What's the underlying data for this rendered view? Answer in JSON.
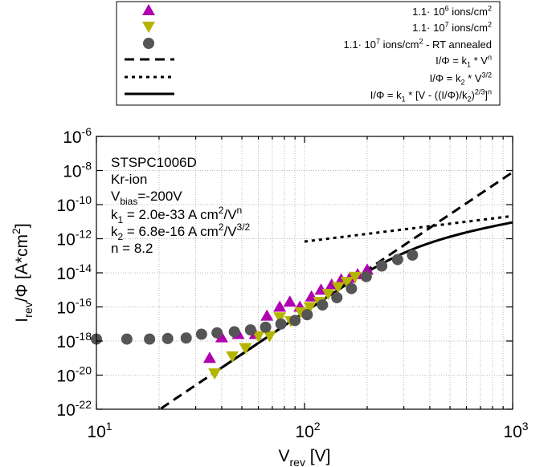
{
  "chart_data": {
    "type": "scatter",
    "x_scale": "log",
    "y_scale": "log",
    "xlim": [
      10,
      1000
    ],
    "ylim": [
      1e-22,
      1e-06
    ],
    "grid": true,
    "legend_placement": "above plot",
    "xlabel": {
      "base": "V",
      "sub": "rev",
      "rest": " [V]"
    },
    "ylabel": {
      "base": "I",
      "sub": "rev",
      "mid": "/Φ [A*cm",
      "sup": "2",
      "end": "]"
    },
    "x_ticks": [
      {
        "value": 10,
        "base": "10",
        "exp": "1"
      },
      {
        "value": 100,
        "base": "10",
        "exp": "2"
      },
      {
        "value": 1000,
        "base": "10",
        "exp": "3"
      }
    ],
    "y_ticks": [
      {
        "value": 1e-06,
        "base": "10",
        "exp": "-6"
      },
      {
        "value": 1e-08,
        "base": "10",
        "exp": "-8"
      },
      {
        "value": 1e-10,
        "base": "10",
        "exp": "-10"
      },
      {
        "value": 1e-12,
        "base": "10",
        "exp": "-12"
      },
      {
        "value": 1e-14,
        "base": "10",
        "exp": "-14"
      },
      {
        "value": 1e-16,
        "base": "10",
        "exp": "-16"
      },
      {
        "value": 1e-18,
        "base": "10",
        "exp": "-18"
      },
      {
        "value": 1e-20,
        "base": "10",
        "exp": "-20"
      },
      {
        "value": 1e-22,
        "base": "10",
        "exp": "-22"
      }
    ],
    "legend": [
      {
        "key": "up",
        "text": "1.1· 10",
        "sup": "6",
        "text2": " ions/cm",
        "sup2": "2"
      },
      {
        "key": "down",
        "text": "1.1· 10",
        "sup": "7",
        "text2": " ions/cm",
        "sup2": "2"
      },
      {
        "key": "dot",
        "text": "1.1· 10",
        "sup": "7",
        "text2": " ions/cm",
        "sup2": "2",
        "text3": " - RT annealed"
      },
      {
        "key": "dash",
        "text": "I/Φ = k",
        "sub": "1",
        "text2": " * V",
        "sup2": "n"
      },
      {
        "key": "dot-line",
        "text": "I/Φ = k",
        "sub": "2",
        "text2": " * V",
        "sup2": "3/2"
      },
      {
        "key": "solid",
        "text": "I/Φ = k",
        "sub": "1",
        "text2": " * [V - ((I/Φ)/k",
        "sub2": "2",
        "text3": ")",
        "sup3": "2/3",
        "text4": "]",
        "sup4": "n"
      }
    ],
    "annotation": {
      "device": "STSPC1006D",
      "ion": "Kr-ion",
      "vbias": {
        "base": "V",
        "sub": "bias",
        "rest": "=-200V"
      },
      "k1": {
        "pre": "k",
        "sub": "1",
        "mid": " = 2.0e-33 A cm",
        "sup": "2",
        "mid2": "/V",
        "sup2": "n"
      },
      "k2": {
        "pre": "k",
        "sub": "2",
        "mid": " = 6.8e-16 A cm",
        "sup": "2",
        "mid2": "/V",
        "sup2": "3/2"
      },
      "n": "n = 8.2"
    },
    "series": [
      {
        "marker": "triangle-up",
        "color": "#b000b0",
        "points": [
          [
            35,
            1e-19
          ],
          [
            40,
            1.6e-18
          ],
          [
            48,
            2.5e-18
          ],
          [
            58,
            2.5e-18
          ],
          [
            66,
            3e-17
          ],
          [
            76,
            1e-16
          ],
          [
            85,
            2e-16
          ],
          [
            95,
            1e-16
          ],
          [
            108,
            4e-16
          ],
          [
            120,
            1e-15
          ],
          [
            135,
            2e-15
          ],
          [
            150,
            4e-15
          ],
          [
            165,
            5e-15
          ],
          [
            180,
            8e-15
          ],
          [
            200,
            1.5e-14
          ]
        ]
      },
      {
        "marker": "triangle-down",
        "color": "#b5b500",
        "points": [
          [
            37,
            1.3e-20
          ],
          [
            45,
            1.3e-19
          ],
          [
            52,
            4e-19
          ],
          [
            60,
            2e-18
          ],
          [
            68,
            2e-18
          ],
          [
            76,
            2.5e-17
          ],
          [
            86,
            1.5e-17
          ],
          [
            96,
            5e-17
          ],
          [
            106,
            1e-16
          ],
          [
            118,
            2e-16
          ],
          [
            130,
            6e-16
          ],
          [
            145,
            1.5e-15
          ],
          [
            160,
            3e-15
          ],
          [
            175,
            6e-15
          ]
        ]
      },
      {
        "marker": "circle",
        "color": "#555555",
        "points": [
          [
            10,
            1.3e-18
          ],
          [
            14,
            1.3e-18
          ],
          [
            18,
            1.3e-18
          ],
          [
            22,
            1.4e-18
          ],
          [
            27,
            1.5e-18
          ],
          [
            32,
            2.5e-18
          ],
          [
            38,
            3e-18
          ],
          [
            46,
            3.5e-18
          ],
          [
            55,
            4.5e-18
          ],
          [
            65,
            6.5e-18
          ],
          [
            77,
            1e-17
          ],
          [
            90,
            1.6e-17
          ],
          [
            103,
            3.5e-17
          ],
          [
            122,
            1.3e-16
          ],
          [
            143,
            3.5e-16
          ],
          [
            168,
            1.2e-15
          ],
          [
            198,
            6e-15
          ],
          [
            235,
            2.5e-14
          ],
          [
            280,
            6e-14
          ],
          [
            330,
            1.1e-13
          ]
        ]
      }
    ],
    "fits": [
      {
        "style": "dash",
        "fn": "k1*V^n",
        "k1": 2e-33,
        "n": 8.2,
        "x_range": [
          20,
          1000
        ]
      },
      {
        "style": "dot",
        "fn": "k2*V^1.5",
        "k2": 6.8e-16,
        "x_range": [
          100,
          1000
        ]
      },
      {
        "style": "solid",
        "fn": "implicit",
        "k1": 2e-33,
        "k2": 6.8e-16,
        "n": 8.2,
        "x_range": [
          37,
          1000
        ]
      }
    ]
  }
}
